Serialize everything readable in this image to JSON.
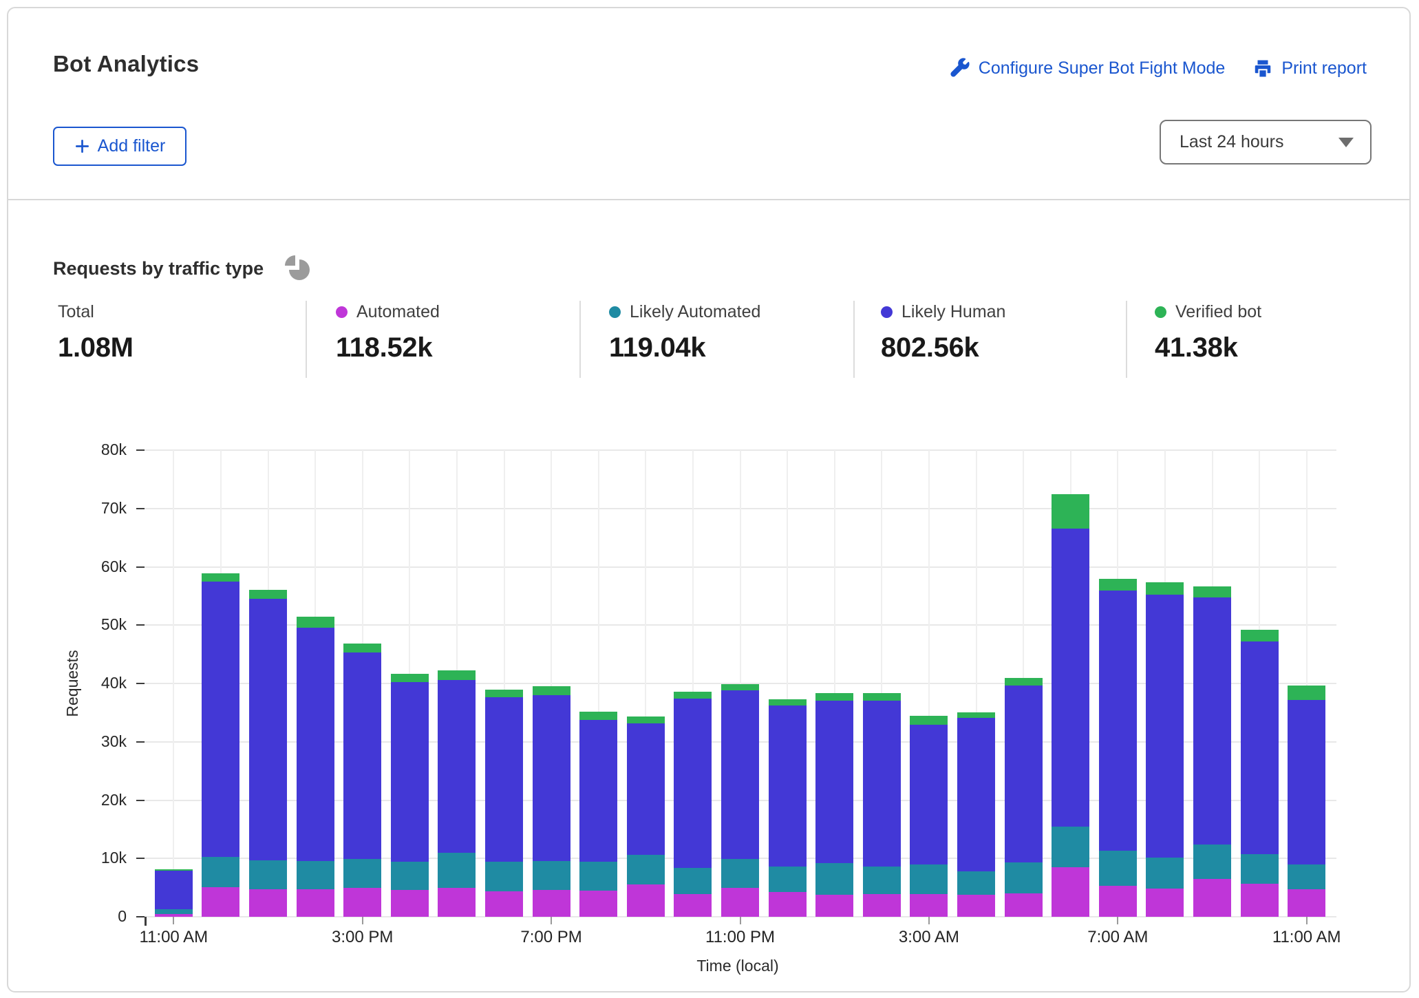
{
  "header": {
    "title": "Bot Analytics",
    "configure_link_label": "Configure Super Bot Fight Mode",
    "print_link_label": "Print report",
    "add_filter_label": "Add filter",
    "time_range_value": "Last 24 hours"
  },
  "stats": [
    {
      "label": "Total",
      "value": "1.08M"
    },
    {
      "label": "Automated",
      "value": "118.52k",
      "color": "#bf36d8"
    },
    {
      "label": "Likely Automated",
      "value": "119.04k",
      "color": "#1f8ba3"
    },
    {
      "label": "Likely Human",
      "value": "802.56k",
      "color": "#4338d6"
    },
    {
      "label": "Verified bot",
      "value": "41.38k",
      "color": "#2db356"
    }
  ],
  "colors": {
    "link_blue": "#1a56cf",
    "card_border": "#d8d8d8",
    "grid": "#e8e8e8",
    "pie_icon_gray": "#9b9b9b",
    "automated": "#bf36d8",
    "likely_automated": "#1f8ba3",
    "likely_human": "#4338d6",
    "verified_bot": "#2db356"
  },
  "chart_data": {
    "type": "bar",
    "stacked": true,
    "title": "Requests by traffic type",
    "xlabel": "Time (local)",
    "ylabel": "Requests",
    "value_unit": "thousands of requests",
    "ylim_k": [
      0,
      80
    ],
    "y_ticks_k": [
      0,
      10,
      20,
      30,
      40,
      50,
      60,
      70,
      80
    ],
    "y_tick_labels": [
      "0",
      "10k",
      "20k",
      "30k",
      "40k",
      "50k",
      "60k",
      "70k",
      "80k"
    ],
    "categories": [
      "11:00 AM",
      "12:00 PM",
      "1:00 PM",
      "2:00 PM",
      "3:00 PM",
      "4:00 PM",
      "5:00 PM",
      "6:00 PM",
      "7:00 PM",
      "8:00 PM",
      "9:00 PM",
      "10:00 PM",
      "11:00 PM",
      "12:00 AM",
      "1:00 AM",
      "2:00 AM",
      "3:00 AM",
      "4:00 AM",
      "5:00 AM",
      "6:00 AM",
      "7:00 AM",
      "8:00 AM",
      "9:00 AM",
      "10:00 AM",
      "11:00 AM"
    ],
    "x_ticks": [
      {
        "index": 0,
        "label": "11:00 AM"
      },
      {
        "index": 4,
        "label": "3:00 PM"
      },
      {
        "index": 8,
        "label": "7:00 PM"
      },
      {
        "index": 12,
        "label": "11:00 PM"
      },
      {
        "index": 16,
        "label": "3:00 AM"
      },
      {
        "index": 20,
        "label": "7:00 AM"
      },
      {
        "index": 24,
        "label": "11:00 AM"
      }
    ],
    "series": [
      {
        "name": "Automated",
        "color": "#bf36d8",
        "values_k": [
          0.5,
          5.1,
          4.7,
          4.7,
          4.9,
          4.6,
          5.0,
          4.4,
          4.6,
          4.5,
          5.5,
          3.9,
          5.0,
          4.3,
          3.8,
          3.9,
          3.9,
          3.8,
          4.0,
          8.5,
          5.3,
          4.8,
          6.5,
          5.7,
          4.7
        ]
      },
      {
        "name": "Likely Automated",
        "color": "#1f8ba3",
        "values_k": [
          0.8,
          5.2,
          5.0,
          4.9,
          5.0,
          4.8,
          6.0,
          5.1,
          5.0,
          4.9,
          5.1,
          4.5,
          4.9,
          4.3,
          5.4,
          4.7,
          5.1,
          4.0,
          5.3,
          7.0,
          6.0,
          5.4,
          5.9,
          5.0,
          4.3
        ]
      },
      {
        "name": "Likely Human",
        "color": "#4338d6",
        "values_k": [
          6.6,
          47.2,
          44.8,
          40.0,
          35.4,
          30.8,
          29.6,
          28.1,
          28.4,
          24.4,
          22.6,
          29.0,
          28.9,
          27.6,
          27.9,
          28.4,
          23.9,
          26.3,
          30.3,
          51.0,
          44.6,
          45.0,
          42.3,
          36.5,
          28.2
        ]
      },
      {
        "name": "Verified bot",
        "color": "#2db356",
        "values_k": [
          0.3,
          1.4,
          1.6,
          1.9,
          1.5,
          1.5,
          1.7,
          1.3,
          1.5,
          1.4,
          1.1,
          1.2,
          1.1,
          1.1,
          1.2,
          1.3,
          1.5,
          0.9,
          1.3,
          5.9,
          2.0,
          2.2,
          1.9,
          2.0,
          2.5
        ]
      }
    ]
  }
}
